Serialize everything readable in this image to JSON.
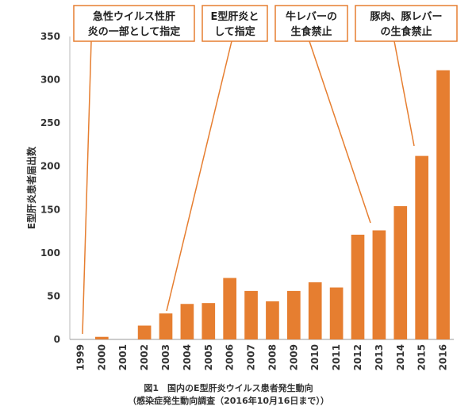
{
  "chart_data": {
    "type": "bar",
    "categories": [
      "1999",
      "2000",
      "2001",
      "2002",
      "2003",
      "2004",
      "2005",
      "2006",
      "2007",
      "2008",
      "2009",
      "2010",
      "2011",
      "2012",
      "2013",
      "2014",
      "2015",
      "2016"
    ],
    "values": [
      0,
      3,
      0,
      16,
      30,
      41,
      42,
      71,
      56,
      44,
      56,
      66,
      60,
      121,
      126,
      154,
      212,
      311
    ],
    "ylabel": "E型肝炎患者届出数",
    "ylim": [
      0,
      350
    ],
    "yticks": [
      0,
      50,
      100,
      150,
      200,
      250,
      300,
      350
    ],
    "bar_color": "#E67E30",
    "grid": false,
    "annotations": [
      {
        "lines": [
          "急性ウイルス性肝",
          "炎の一部として指定"
        ],
        "target": "1999"
      },
      {
        "lines": [
          "E型肝炎と",
          "して指定"
        ],
        "target": "2003"
      },
      {
        "lines": [
          "牛レバーの",
          "生食禁止"
        ],
        "target": "2012"
      },
      {
        "lines": [
          "豚肉、豚レバー",
          "の生食禁止"
        ],
        "target": "2015"
      }
    ],
    "caption": [
      "図1　国内のE型肝炎ウイルス患者発生動向",
      "（感染症発生動向調査（2016年10月16日まで））"
    ]
  },
  "colors": {
    "bar": "#E67E30",
    "annotation_border": "#E67E30",
    "text": "#333333"
  }
}
